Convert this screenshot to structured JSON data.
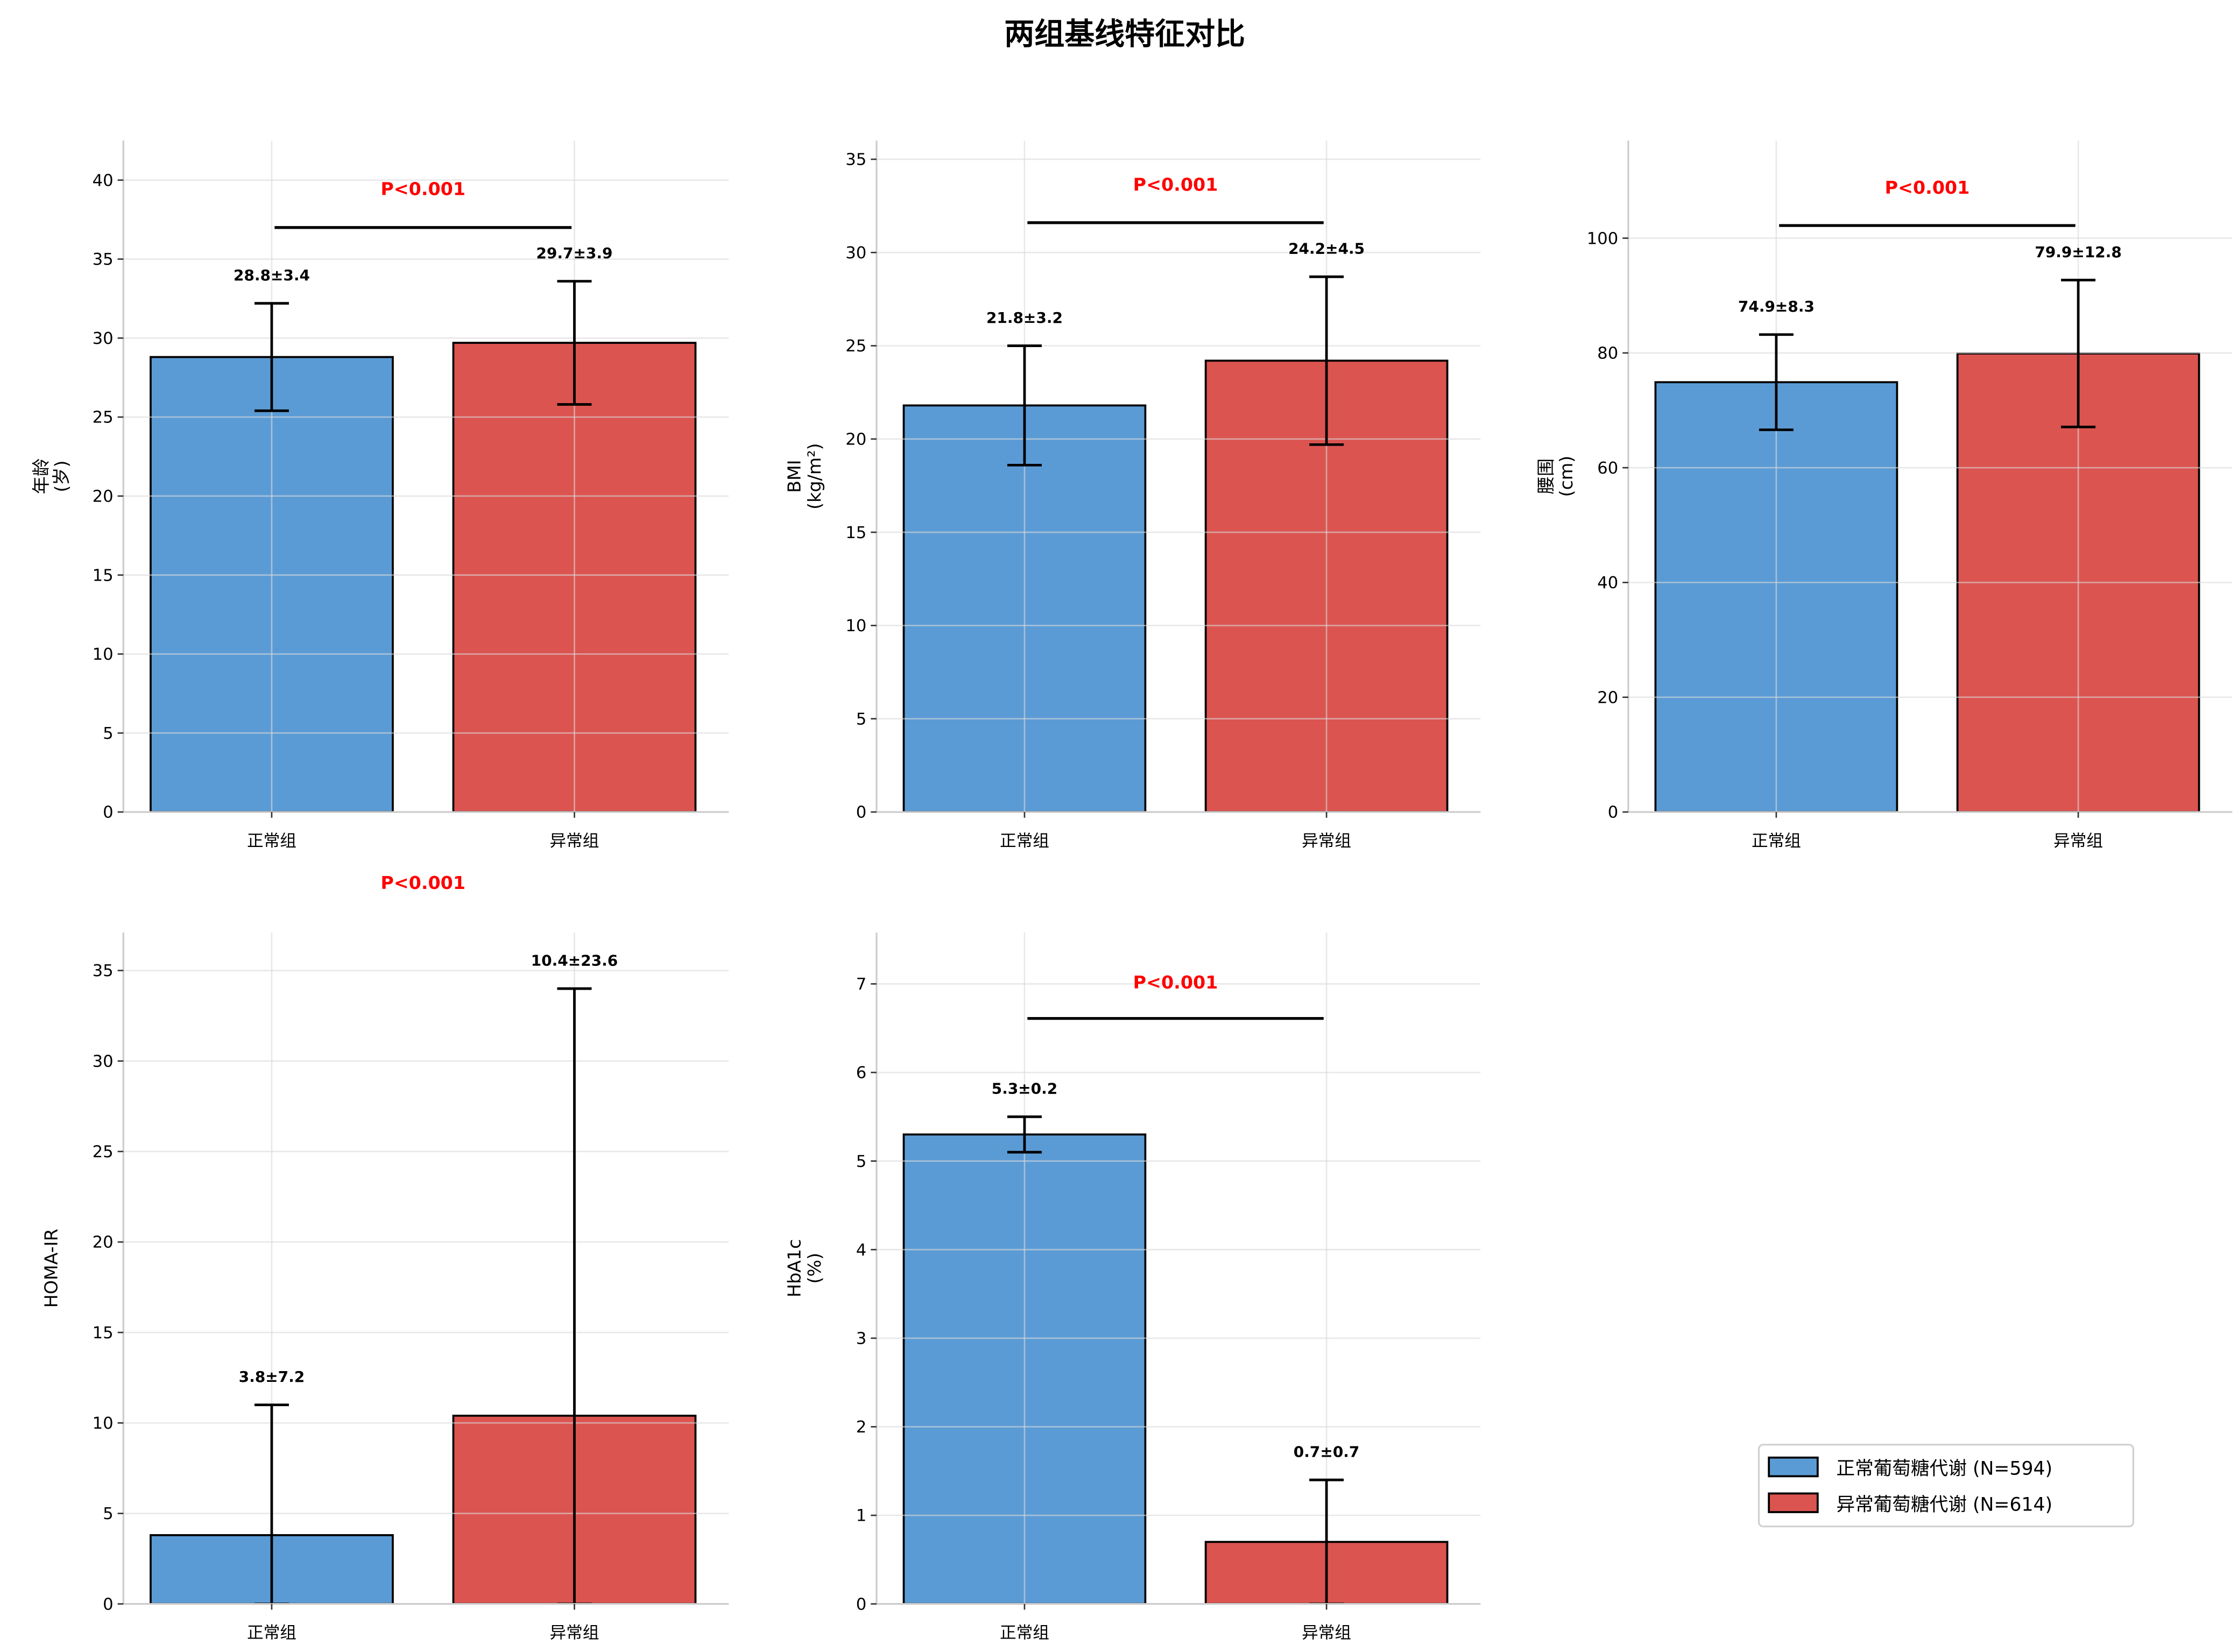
{
  "title": "两组基线特征对比",
  "colors": {
    "normal": "#5b9bd5",
    "abnormal": "#db5450",
    "pvalue": "#ff0000"
  },
  "legend": {
    "placement": "lower-right",
    "entries": [
      "正常葡萄糖代谢 (N=594)",
      "异常葡萄糖代谢 (N=614)"
    ]
  },
  "chart_data": [
    {
      "type": "bar",
      "categories": [
        "正常组",
        "异常组"
      ],
      "values": [
        28.8,
        29.7
      ],
      "errors": [
        3.4,
        3.9
      ],
      "value_labels": [
        "28.8±3.4",
        "29.7±3.9"
      ],
      "ylabel": [
        "年龄",
        "(岁)"
      ],
      "ylim": [
        0,
        42.5
      ],
      "yticks": [
        0,
        5,
        10,
        15,
        20,
        25,
        30,
        35,
        40
      ],
      "pvalue": "P<0.001",
      "bracket_y": 37,
      "pvalue_y": 39.5,
      "grid": true
    },
    {
      "type": "bar",
      "categories": [
        "正常组",
        "异常组"
      ],
      "values": [
        21.8,
        24.2
      ],
      "errors": [
        3.2,
        4.5
      ],
      "value_labels": [
        "21.8±3.2",
        "24.2±4.5"
      ],
      "ylabel": [
        "BMI",
        "(kg/m²)"
      ],
      "ylim": [
        0,
        36
      ],
      "yticks": [
        0,
        5,
        10,
        15,
        20,
        25,
        30,
        35
      ],
      "pvalue": "P<0.001",
      "bracket_y": 31.6,
      "pvalue_y": 33.7,
      "grid": true
    },
    {
      "type": "bar",
      "categories": [
        "正常组",
        "异常组"
      ],
      "values": [
        74.9,
        79.9
      ],
      "errors": [
        8.3,
        12.8
      ],
      "value_labels": [
        "74.9±8.3",
        "79.9±12.8"
      ],
      "ylabel": [
        "腰围",
        "(cm)"
      ],
      "ylim": [
        0,
        117
      ],
      "yticks": [
        0,
        20,
        40,
        60,
        80,
        100
      ],
      "pvalue": "P<0.001",
      "bracket_y": 102.2,
      "pvalue_y": 109,
      "grid": true
    },
    {
      "type": "bar",
      "categories": [
        "正常组",
        "异常组"
      ],
      "values": [
        3.8,
        10.4
      ],
      "errors": [
        7.2,
        23.6
      ],
      "value_labels": [
        "3.8±7.2",
        "10.4±23.6"
      ],
      "ylabel": [
        "HOMA-IR"
      ],
      "ylim": [
        0,
        37.1
      ],
      "yticks": [
        0,
        5,
        10,
        15,
        20,
        25,
        30,
        35
      ],
      "pvalue": "P<0.001",
      "bracket_y": 37.4,
      "pvalue_y": 39.9,
      "grid": true
    },
    {
      "type": "bar",
      "categories": [
        "正常组",
        "异常组"
      ],
      "values": [
        5.3,
        0.7
      ],
      "errors": [
        0.2,
        0.7
      ],
      "value_labels": [
        "5.3±0.2",
        "0.7±0.7"
      ],
      "ylabel": [
        "HbA1c",
        "(%)"
      ],
      "ylim": [
        0,
        7.58
      ],
      "yticks": [
        0,
        1,
        2,
        3,
        4,
        5,
        6,
        7
      ],
      "pvalue": "P<0.001",
      "bracket_y": 6.61,
      "pvalue_y": 7.03,
      "grid": true
    }
  ]
}
